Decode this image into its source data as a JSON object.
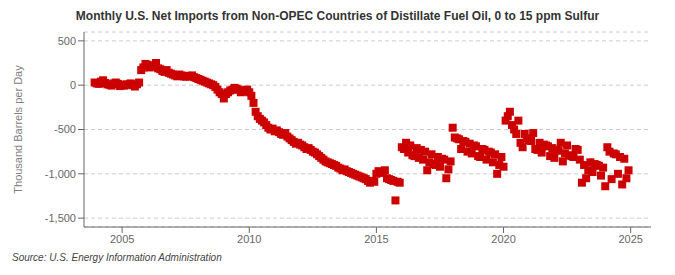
{
  "chart_data": {
    "type": "scatter",
    "title": "Monthly U.S. Net Imports from Non-OPEC Countries of Distillate Fuel Oil, 0 to 15 ppm Sulfur",
    "ylabel": "Thousand Barrels per Day",
    "annotations": [
      "Source: U.S. Energy Information Administration"
    ],
    "color": "#cc0000",
    "marker": "square",
    "grid": "y",
    "xlim": [
      2003.5,
      2025.8
    ],
    "xticks": [
      2005,
      2010,
      2015,
      2020,
      2025
    ],
    "ylim": [
      -1600,
      600
    ],
    "yticks": [
      {
        "value": -1500,
        "label": "-1,500"
      },
      {
        "value": -1000,
        "label": "-1,000"
      },
      -500,
      0,
      500
    ],
    "x": [
      2003.917,
      2004,
      2004.083,
      2004.167,
      2004.25,
      2004.333,
      2004.417,
      2004.5,
      2004.583,
      2004.667,
      2004.75,
      2004.833,
      2004.917,
      2005,
      2005.083,
      2005.167,
      2005.25,
      2005.333,
      2005.417,
      2005.5,
      2005.583,
      2005.667,
      2005.75,
      2005.833,
      2005.917,
      2006,
      2006.083,
      2006.167,
      2006.25,
      2006.333,
      2006.417,
      2006.5,
      2006.583,
      2006.667,
      2006.75,
      2006.833,
      2006.917,
      2007,
      2007.083,
      2007.167,
      2007.25,
      2007.333,
      2007.417,
      2007.5,
      2007.583,
      2007.667,
      2007.75,
      2007.833,
      2007.917,
      2008,
      2008.083,
      2008.167,
      2008.25,
      2008.333,
      2008.417,
      2008.5,
      2008.583,
      2008.667,
      2008.75,
      2008.833,
      2008.917,
      2009,
      2009.083,
      2009.167,
      2009.25,
      2009.333,
      2009.417,
      2009.5,
      2009.583,
      2009.667,
      2009.75,
      2009.833,
      2009.917,
      2010,
      2010.083,
      2010.167,
      2010.25,
      2010.333,
      2010.417,
      2010.5,
      2010.583,
      2010.667,
      2010.75,
      2010.833,
      2010.917,
      2011,
      2011.083,
      2011.167,
      2011.25,
      2011.333,
      2011.417,
      2011.5,
      2011.583,
      2011.667,
      2011.75,
      2011.833,
      2011.917,
      2012,
      2012.083,
      2012.167,
      2012.25,
      2012.333,
      2012.417,
      2012.5,
      2012.583,
      2012.667,
      2012.75,
      2012.833,
      2012.917,
      2013,
      2013.083,
      2013.167,
      2013.25,
      2013.333,
      2013.417,
      2013.5,
      2013.583,
      2013.667,
      2013.75,
      2013.833,
      2013.917,
      2014,
      2014.083,
      2014.167,
      2014.25,
      2014.333,
      2014.417,
      2014.5,
      2014.583,
      2014.667,
      2014.75,
      2014.833,
      2014.917,
      2015,
      2015.083,
      2015.167,
      2015.25,
      2015.333,
      2015.417,
      2015.5,
      2015.583,
      2015.667,
      2015.75,
      2015.833,
      2015.917,
      2016,
      2016.083,
      2016.167,
      2016.25,
      2016.333,
      2016.417,
      2016.5,
      2016.583,
      2016.667,
      2016.75,
      2016.833,
      2016.917,
      2017,
      2017.083,
      2017.167,
      2017.25,
      2017.333,
      2017.417,
      2017.5,
      2017.583,
      2017.667,
      2017.75,
      2017.833,
      2017.917,
      2018,
      2018.083,
      2018.167,
      2018.25,
      2018.333,
      2018.417,
      2018.5,
      2018.583,
      2018.667,
      2018.75,
      2018.833,
      2018.917,
      2019,
      2019.083,
      2019.167,
      2019.25,
      2019.333,
      2019.417,
      2019.5,
      2019.583,
      2019.667,
      2019.75,
      2019.833,
      2019.917,
      2020,
      2020.083,
      2020.167,
      2020.25,
      2020.333,
      2020.417,
      2020.5,
      2020.583,
      2020.667,
      2020.75,
      2020.833,
      2020.917,
      2021,
      2021.083,
      2021.167,
      2021.25,
      2021.333,
      2021.417,
      2021.5,
      2021.583,
      2021.667,
      2021.75,
      2021.833,
      2021.917,
      2022,
      2022.083,
      2022.167,
      2022.25,
      2022.333,
      2022.417,
      2022.5,
      2022.583,
      2022.667,
      2022.75,
      2022.833,
      2022.917,
      2023,
      2023.083,
      2023.167,
      2023.25,
      2023.333,
      2023.417,
      2023.5,
      2023.583,
      2023.667,
      2023.75,
      2023.833,
      2023.917,
      2024,
      2024.083,
      2024.167,
      2024.25,
      2024.333,
      2024.417,
      2024.5,
      2024.583,
      2024.667,
      2024.75,
      2024.833,
      2024.917
    ],
    "values": [
      30,
      20,
      15,
      40,
      55,
      25,
      10,
      5,
      -5,
      20,
      30,
      15,
      -10,
      0,
      -5,
      10,
      5,
      20,
      0,
      -15,
      10,
      30,
      170,
      200,
      240,
      230,
      200,
      210,
      220,
      250,
      190,
      180,
      160,
      150,
      170,
      140,
      130,
      120,
      110,
      100,
      120,
      110,
      100,
      95,
      105,
      100,
      110,
      90,
      80,
      70,
      60,
      50,
      40,
      30,
      20,
      10,
      0,
      -20,
      -50,
      -80,
      -100,
      -150,
      -100,
      -80,
      -60,
      -50,
      -30,
      -40,
      -50,
      -80,
      -60,
      -70,
      -50,
      -80,
      -120,
      -200,
      -300,
      -350,
      -380,
      -400,
      -420,
      -450,
      -480,
      -500,
      -490,
      -520,
      -510,
      -530,
      -550,
      -560,
      -540,
      -580,
      -600,
      -620,
      -640,
      -660,
      -650,
      -670,
      -680,
      -700,
      -720,
      -710,
      -730,
      -750,
      -760,
      -780,
      -800,
      -820,
      -840,
      -860,
      -870,
      -880,
      -890,
      -900,
      -910,
      -930,
      -940,
      -960,
      -950,
      -970,
      -980,
      -990,
      -1000,
      -1010,
      -1020,
      -1030,
      -1040,
      -1050,
      -1060,
      -1080,
      -1100,
      -1080,
      -1090,
      -1000,
      -970,
      -980,
      -990,
      -960,
      -1050,
      -1060,
      -1070,
      -1080,
      -1300,
      -1090,
      -1100,
      -700,
      -720,
      -650,
      -760,
      -680,
      -790,
      -800,
      -710,
      -820,
      -730,
      -840,
      -750,
      -960,
      -870,
      -780,
      -890,
      -900,
      -810,
      -920,
      -830,
      -840,
      -1050,
      -950,
      -860,
      -480,
      -590,
      -600,
      -610,
      -720,
      -630,
      -640,
      -750,
      -660,
      -770,
      -680,
      -690,
      -800,
      -810,
      -720,
      -730,
      -840,
      -750,
      -760,
      -870,
      -780,
      -1000,
      -900,
      -810,
      -920,
      -400,
      -350,
      -300,
      -450,
      -500,
      -550,
      -400,
      -650,
      -700,
      -550,
      -600,
      -620,
      -630,
      -540,
      -720,
      -730,
      -650,
      -760,
      -670,
      -680,
      -690,
      -800,
      -710,
      -820,
      -730,
      -740,
      -650,
      -860,
      -770,
      -680,
      -790,
      -800,
      -810,
      -720,
      -730,
      -840,
      -1100,
      -900,
      -1050,
      -960,
      -870,
      -980,
      -890,
      -900,
      -910,
      -1020,
      -930,
      -1140,
      -700,
      -750,
      -1060,
      -770,
      -780,
      -1000,
      -810,
      -1120,
      -830,
      -1050,
      -960
    ]
  }
}
